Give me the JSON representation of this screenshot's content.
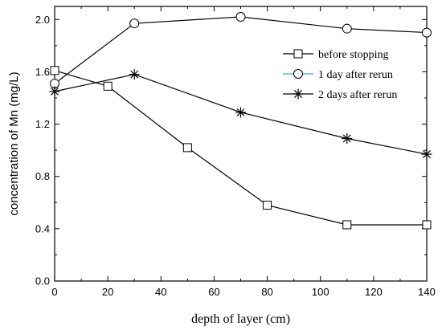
{
  "chart_data": {
    "type": "line",
    "xlabel": "depth of layer (cm)",
    "ylabel": "concentration of Mn (mg/L)",
    "xlim": [
      0,
      140
    ],
    "ylim": [
      0,
      2.1
    ],
    "xticks": [
      "0",
      "20",
      "40",
      "60",
      "80",
      "100",
      "120",
      "140"
    ],
    "yticks": [
      "0.0",
      "0.4",
      "0.8",
      "1.2",
      "1.6",
      "2.0"
    ],
    "grid": false,
    "legend_position": "top-right",
    "series": [
      {
        "name": "before stopping",
        "marker": "square",
        "color": "#000000",
        "x": [
          0,
          20,
          50,
          80,
          110,
          140
        ],
        "y": [
          1.61,
          1.49,
          1.02,
          0.58,
          0.43,
          0.43
        ]
      },
      {
        "name": "1 day after rerun",
        "marker": "circle",
        "color": "#000000",
        "legend_line_color": "#3ba9c7",
        "x": [
          0,
          30,
          70,
          110,
          140
        ],
        "y": [
          1.51,
          1.97,
          2.02,
          1.93,
          1.9
        ]
      },
      {
        "name": "2 days after rerun",
        "marker": "asterisk",
        "color": "#000000",
        "x": [
          0,
          30,
          70,
          110,
          140
        ],
        "y": [
          1.45,
          1.58,
          1.29,
          1.09,
          0.97
        ]
      }
    ]
  }
}
